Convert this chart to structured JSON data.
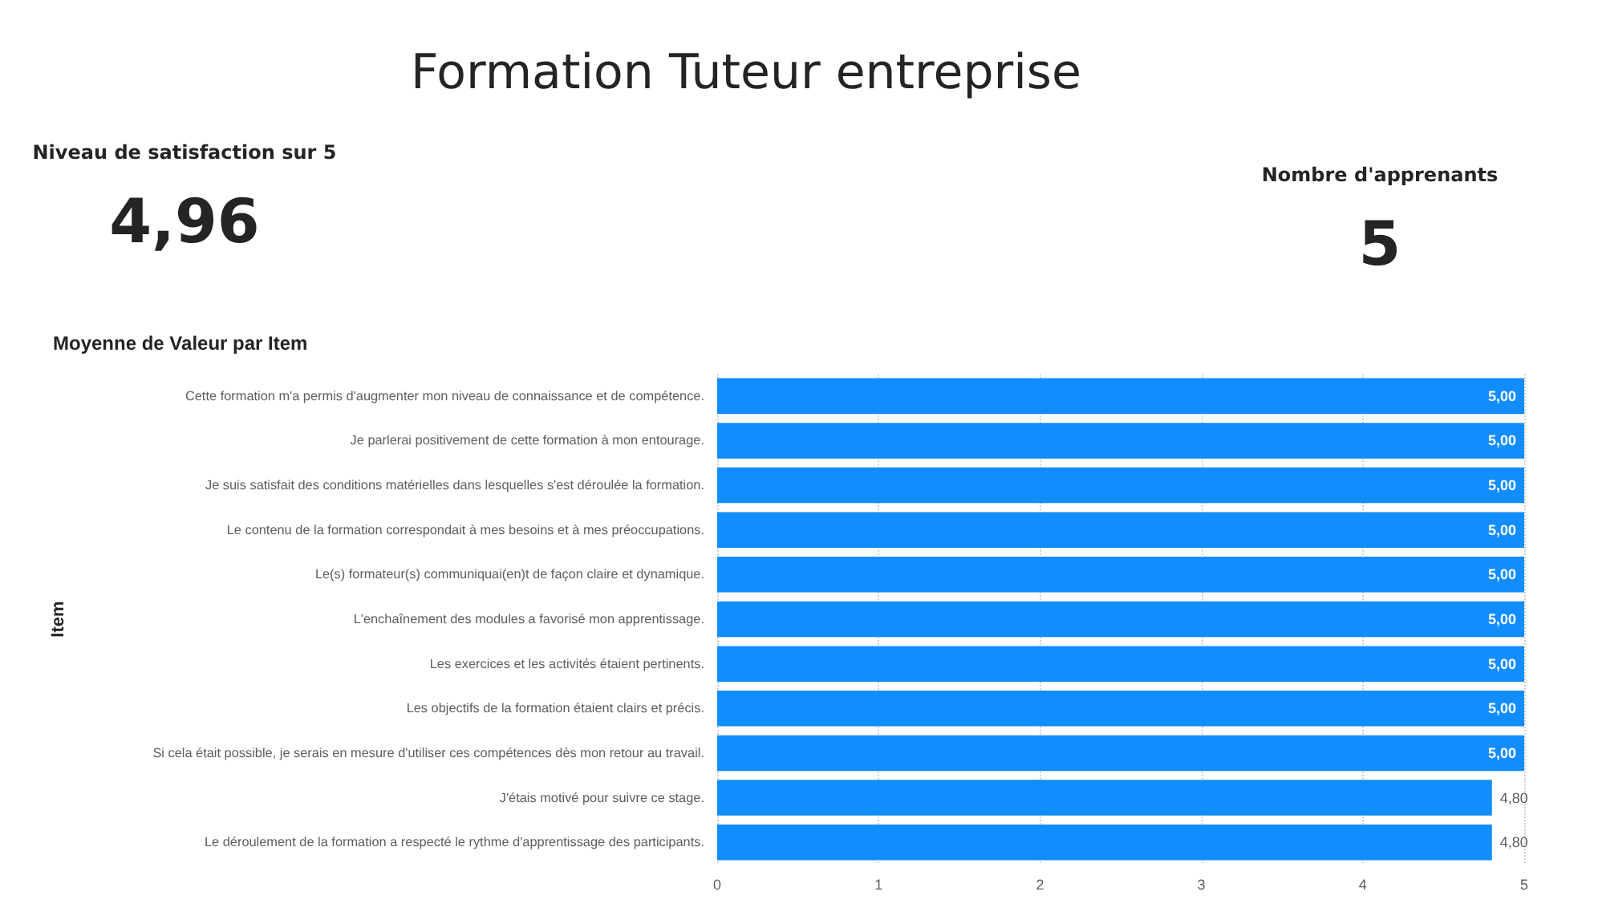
{
  "chart_data": [
    {
      "type": "other",
      "title": "Niveau de satisfaction sur 5",
      "annotations": [
        "4,96"
      ]
    },
    {
      "type": "other",
      "title": "Nombre d'apprenants",
      "annotations": [
        "5"
      ]
    },
    {
      "type": "bar",
      "title": "Formation Tuteur entreprise",
      "subtitle": "Moyenne de Valeur par Item",
      "ylabel": "Item",
      "orientation": "horizontal",
      "categories": [
        "Cette formation m'a permis d'augmenter mon niveau de connaissance et de compétence.",
        "Je parlerai positivement de cette formation à mon entourage.",
        "Je suis satisfait des conditions matérielles dans lesquelles s'est déroulée la formation.",
        "Le contenu de la formation correspondait à mes besoins et à mes préoccupations.",
        "Le(s) formateur(s) communiquai(en)t de façon claire et dynamique.",
        "L'enchaînement des modules a favorisé mon apprentissage.",
        "Les exercices et les activités étaient pertinents.",
        "Les objectifs de la formation étaient clairs et précis.",
        "Si cela était possible, je serais en mesure d'utiliser ces compétences dès mon retour au travail.",
        "J'étais motivé pour suivre ce stage.",
        "Le déroulement de la formation a respecté le rythme d'apprentissage des participants."
      ],
      "values": [
        5,
        5,
        5,
        5,
        5,
        5,
        5,
        5,
        5,
        4.8,
        4.8
      ],
      "value_labels": [
        "5,00",
        "5,00",
        "5,00",
        "5,00",
        "5,00",
        "5,00",
        "5,00",
        "5,00",
        "5,00",
        "4,80",
        "4,80"
      ],
      "color": "#118dff",
      "xlim": [
        0,
        5
      ],
      "xticks": [
        0,
        1,
        2,
        3,
        4,
        5
      ],
      "grid": "x"
    }
  ]
}
